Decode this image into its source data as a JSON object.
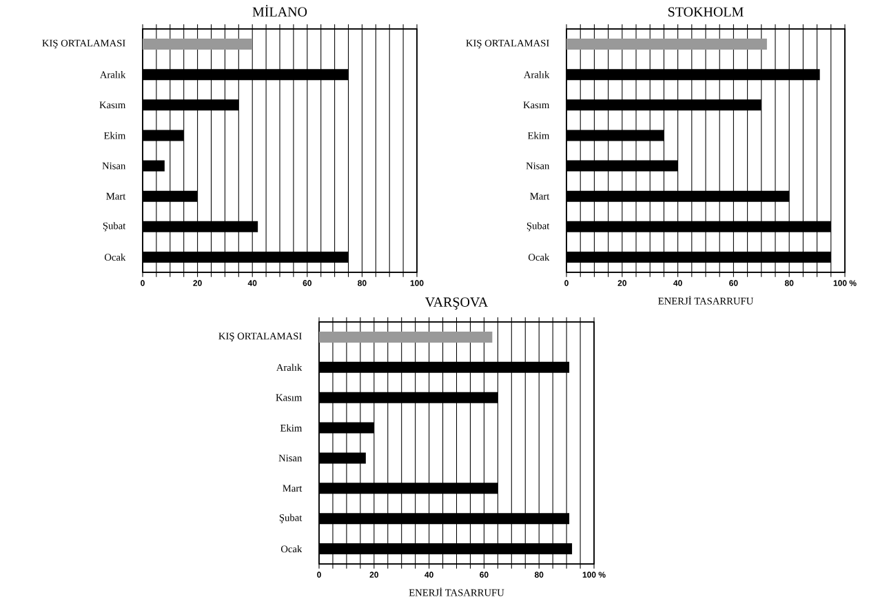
{
  "chart_data": [
    {
      "type": "bar",
      "orientation": "horizontal",
      "title": "MİLANO",
      "categories": [
        "KIŞ ORTALAMASI",
        "Aralık",
        "Kasım",
        "Ekim",
        "Nisan",
        "Mart",
        "Şubat",
        "Ocak"
      ],
      "values": [
        40,
        75,
        35,
        15,
        8,
        20,
        42,
        75
      ],
      "colors": [
        "#999999",
        "#000000",
        "#000000",
        "#000000",
        "#000000",
        "#000000",
        "#000000",
        "#000000"
      ],
      "xlim": [
        0,
        100
      ],
      "xticks": [
        0,
        {
          "value": 5,
          "label": null
        },
        {
          "value": 10,
          "label": null
        },
        {
          "value": 15,
          "label": null
        },
        20,
        {
          "value": 25,
          "label": null
        },
        {
          "value": 30,
          "label": null
        },
        {
          "value": 35,
          "label": null
        },
        40,
        {
          "value": 45,
          "label": null
        },
        {
          "value": 50,
          "label": null
        },
        {
          "value": 55,
          "label": null
        },
        60,
        {
          "value": 65,
          "label": null
        },
        {
          "value": 70,
          "label": null
        },
        {
          "value": 75,
          "label": null
        },
        80,
        {
          "value": 85,
          "label": null
        },
        {
          "value": 90,
          "label": null
        },
        {
          "value": 95,
          "label": null
        },
        100
      ],
      "grid": "x"
    },
    {
      "type": "bar",
      "orientation": "horizontal",
      "title": "STOKHOLM",
      "xlabel": "ENERJİ TASARRUFU",
      "categories": [
        "KIŞ ORTALAMASI",
        "Aralık",
        "Kasım",
        "Ekim",
        "Nisan",
        "Mart",
        "Şubat",
        "Ocak"
      ],
      "values": [
        72,
        91,
        70,
        35,
        40,
        80,
        95,
        95
      ],
      "colors": [
        "#999999",
        "#000000",
        "#000000",
        "#000000",
        "#000000",
        "#000000",
        "#000000",
        "#000000"
      ],
      "xlim": [
        0,
        100
      ],
      "xticks": [
        0,
        {
          "value": 5,
          "label": null
        },
        {
          "value": 10,
          "label": null
        },
        {
          "value": 15,
          "label": null
        },
        20,
        {
          "value": 25,
          "label": null
        },
        {
          "value": 30,
          "label": null
        },
        {
          "value": 35,
          "label": null
        },
        40,
        {
          "value": 45,
          "label": null
        },
        {
          "value": 50,
          "label": null
        },
        {
          "value": 55,
          "label": null
        },
        60,
        {
          "value": 65,
          "label": null
        },
        {
          "value": 70,
          "label": null
        },
        {
          "value": 75,
          "label": null
        },
        80,
        {
          "value": 85,
          "label": null
        },
        {
          "value": 90,
          "label": null
        },
        {
          "value": 95,
          "label": null
        },
        {
          "value": 100,
          "label": "100 %"
        }
      ],
      "grid": "x"
    },
    {
      "type": "bar",
      "orientation": "horizontal",
      "title": "VARŞOVA",
      "xlabel": "ENERJİ TASARRUFU",
      "categories": [
        "KIŞ ORTALAMASI",
        "Aralık",
        "Kasım",
        "Ekim",
        "Nisan",
        "Mart",
        "Şubat",
        "Ocak"
      ],
      "values": [
        63,
        91,
        65,
        20,
        17,
        65,
        91,
        92
      ],
      "colors": [
        "#999999",
        "#000000",
        "#000000",
        "#000000",
        "#000000",
        "#000000",
        "#000000",
        "#000000"
      ],
      "xlim": [
        0,
        100
      ],
      "xticks": [
        0,
        {
          "value": 5,
          "label": null
        },
        {
          "value": 10,
          "label": null
        },
        {
          "value": 15,
          "label": null
        },
        20,
        {
          "value": 25,
          "label": null
        },
        {
          "value": 30,
          "label": null
        },
        {
          "value": 35,
          "label": null
        },
        40,
        {
          "value": 45,
          "label": null
        },
        {
          "value": 50,
          "label": null
        },
        {
          "value": 55,
          "label": null
        },
        60,
        {
          "value": 65,
          "label": null
        },
        {
          "value": 70,
          "label": null
        },
        {
          "value": 75,
          "label": null
        },
        80,
        {
          "value": 85,
          "label": null
        },
        {
          "value": 90,
          "label": null
        },
        {
          "value": 95,
          "label": null
        },
        {
          "value": 100,
          "label": "100 %"
        }
      ],
      "grid": "x"
    }
  ]
}
